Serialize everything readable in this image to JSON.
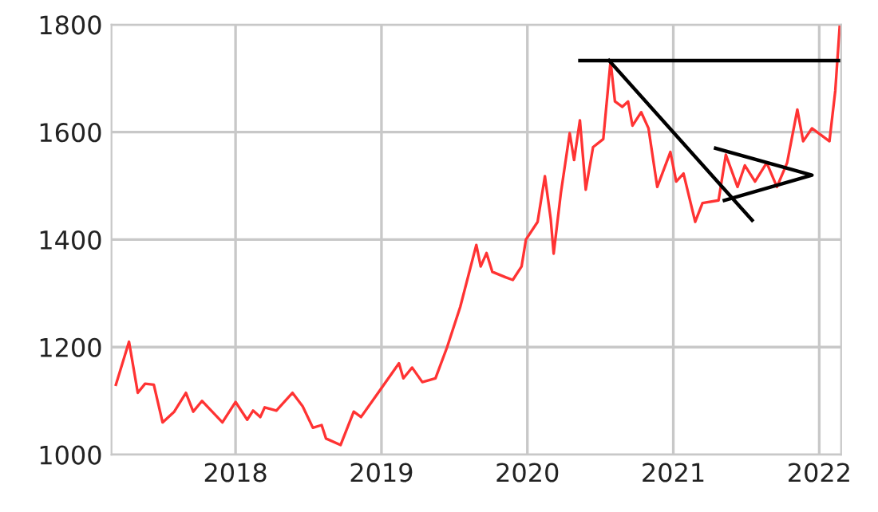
{
  "chart_data": {
    "type": "line",
    "xlim": [
      2017.15,
      2022.15
    ],
    "ylim": [
      1000,
      1800
    ],
    "xticks": [
      2018,
      2019,
      2020,
      2021,
      2022
    ],
    "yticks": [
      1000,
      1200,
      1400,
      1600,
      1800
    ],
    "grid": true,
    "marker": "none",
    "line_style": "solid",
    "series": [
      {
        "color": "#ff3333",
        "x": [
          2017.18,
          2017.27,
          2017.33,
          2017.38,
          2017.44,
          2017.5,
          2017.58,
          2017.66,
          2017.71,
          2017.77,
          2017.91,
          2018.0,
          2018.08,
          2018.12,
          2018.17,
          2018.2,
          2018.28,
          2018.39,
          2018.46,
          2018.53,
          2018.59,
          2018.62,
          2018.72,
          2018.81,
          2018.86,
          2018.99,
          2019.12,
          2019.15,
          2019.21,
          2019.28,
          2019.37,
          2019.45,
          2019.54,
          2019.65,
          2019.68,
          2019.72,
          2019.76,
          2019.85,
          2019.9,
          2019.96,
          2019.99,
          2020.07,
          2020.12,
          2020.16,
          2020.18,
          2020.23,
          2020.29,
          2020.32,
          2020.36,
          2020.4,
          2020.45,
          2020.52,
          2020.57,
          2020.6,
          2020.65,
          2020.69,
          2020.72,
          2020.78,
          2020.83,
          2020.89,
          2020.98,
          2021.02,
          2021.07,
          2021.15,
          2021.2,
          2021.31,
          2021.36,
          2021.44,
          2021.49,
          2021.56,
          2021.64,
          2021.71,
          2021.78,
          2021.85,
          2021.89,
          2021.95,
          2022.0,
          2022.07,
          2022.11,
          2022.14
        ],
        "values": [
          1130,
          1210,
          1115,
          1132,
          1130,
          1060,
          1080,
          1115,
          1080,
          1100,
          1060,
          1098,
          1065,
          1082,
          1070,
          1088,
          1082,
          1115,
          1090,
          1050,
          1055,
          1030,
          1018,
          1080,
          1070,
          1120,
          1170,
          1142,
          1162,
          1135,
          1142,
          1200,
          1275,
          1390,
          1350,
          1375,
          1340,
          1330,
          1325,
          1350,
          1400,
          1433,
          1518,
          1438,
          1374,
          1488,
          1598,
          1548,
          1622,
          1493,
          1572,
          1587,
          1732,
          1657,
          1647,
          1657,
          1612,
          1637,
          1607,
          1498,
          1563,
          1508,
          1523,
          1433,
          1468,
          1473,
          1558,
          1498,
          1538,
          1508,
          1543,
          1498,
          1543,
          1642,
          1583,
          1607,
          1597,
          1583,
          1677,
          1796
        ]
      },
      {
        "color": "#000000",
        "x": [
          2020.36,
          2022.15
        ],
        "values": [
          1733,
          1733
        ]
      },
      {
        "color": "#000000",
        "x": [
          2020.56,
          2021.54
        ],
        "values": [
          1733,
          1436
        ]
      },
      {
        "color": "#000000",
        "x": [
          2021.29,
          2021.95,
          2021.35
        ],
        "values": [
          1570,
          1520,
          1473
        ]
      }
    ]
  }
}
